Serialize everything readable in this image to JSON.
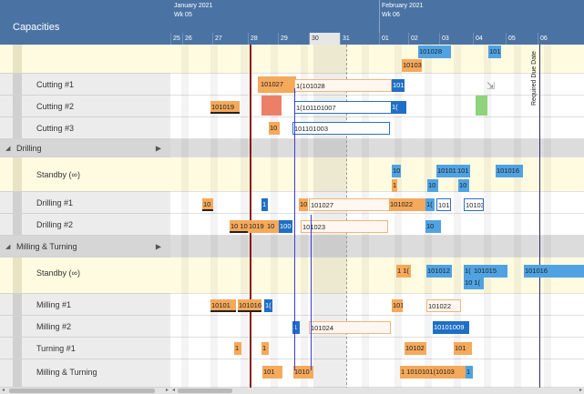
{
  "title": "Capacities",
  "header": {
    "months": [
      {
        "label": "January 2021",
        "week": "Wk 05"
      },
      {
        "label": "February 2021",
        "week": "Wk 06"
      }
    ],
    "days": [
      "25",
      "26",
      "27",
      "28",
      "29",
      "30",
      "31",
      "01",
      "02",
      "03",
      "04",
      "05",
      "06"
    ]
  },
  "rows": [
    {
      "name": "",
      "kind": "top"
    },
    {
      "name": "Cutting #1",
      "kind": "res"
    },
    {
      "name": "Cutting #2",
      "kind": "res"
    },
    {
      "name": "Cutting #3",
      "kind": "res"
    },
    {
      "name": "Drilling",
      "kind": "group"
    },
    {
      "name": "Standby (∞)",
      "kind": "standby"
    },
    {
      "name": "Drilling #1",
      "kind": "res"
    },
    {
      "name": "Drilling #2",
      "kind": "res"
    },
    {
      "name": "Milling & Turning",
      "kind": "group"
    },
    {
      "name": "Standby (∞)",
      "kind": "standby"
    },
    {
      "name": "Milling #1",
      "kind": "res"
    },
    {
      "name": "Milling #2",
      "kind": "res"
    },
    {
      "name": "Turning #1",
      "kind": "res"
    },
    {
      "name": "Milling & Turning",
      "kind": "res"
    }
  ],
  "required_due_date_label": "Required Due Date",
  "bars": [
    {
      "row": 0,
      "text": "101028",
      "color": "blue"
    },
    {
      "row": 0,
      "text": "101",
      "color": "blue"
    },
    {
      "row": 0,
      "text": "10103",
      "color": "orange"
    },
    {
      "row": 1,
      "text": "101027",
      "color": "orange"
    },
    {
      "row": 1,
      "text": "1(101028",
      "color": "outline"
    },
    {
      "row": 1,
      "text": "101",
      "color": "dblue"
    },
    {
      "row": 2,
      "text": "101019",
      "color": "orange"
    },
    {
      "row": 2,
      "text": "",
      "color": "red"
    },
    {
      "row": 2,
      "text": "1(101101007",
      "color": "bluebox"
    },
    {
      "row": 2,
      "text": "1(",
      "color": "dblue"
    },
    {
      "row": 2,
      "text": "",
      "color": "green"
    },
    {
      "row": 3,
      "text": "10",
      "color": "orange"
    },
    {
      "row": 3,
      "text": "101101003",
      "color": "bluebox"
    },
    {
      "row": 5,
      "text": "10",
      "color": "blue"
    },
    {
      "row": 5,
      "text": "10101",
      "color": "blue"
    },
    {
      "row": 5,
      "text": "101",
      "color": "blue"
    },
    {
      "row": 5,
      "text": "101016",
      "color": "blue"
    },
    {
      "row": 5,
      "text": "1",
      "color": "orange"
    },
    {
      "row": 5,
      "text": "10",
      "color": "blue"
    },
    {
      "row": 5,
      "text": "10",
      "color": "blue"
    },
    {
      "row": 6,
      "text": "10",
      "color": "orange"
    },
    {
      "row": 6,
      "text": "1",
      "color": "dblue"
    },
    {
      "row": 6,
      "text": "10",
      "color": "orange"
    },
    {
      "row": 6,
      "text": "101027",
      "color": "outline"
    },
    {
      "row": 6,
      "text": "101022",
      "color": "orange"
    },
    {
      "row": 6,
      "text": "1(",
      "color": "blue"
    },
    {
      "row": 6,
      "text": "101",
      "color": "bluebox"
    },
    {
      "row": 6,
      "text": "10103",
      "color": "bluebox"
    },
    {
      "row": 7,
      "text": "10 10",
      "color": "orange"
    },
    {
      "row": 7,
      "text": "1019",
      "color": "orange"
    },
    {
      "row": 7,
      "text": "10",
      "color": "orange"
    },
    {
      "row": 7,
      "text": "100",
      "color": "dblue"
    },
    {
      "row": 7,
      "text": "101023",
      "color": "outline"
    },
    {
      "row": 7,
      "text": "10",
      "color": "blue"
    },
    {
      "row": 9,
      "text": "1 1(",
      "color": "orange"
    },
    {
      "row": 9,
      "text": "101012",
      "color": "blue"
    },
    {
      "row": 9,
      "text": "1(",
      "color": "blue"
    },
    {
      "row": 9,
      "text": "101015",
      "color": "blue"
    },
    {
      "row": 9,
      "text": "10",
      "color": "blue"
    },
    {
      "row": 9,
      "text": "101016",
      "color": "blue"
    },
    {
      "row": 9,
      "text": "10 1(",
      "color": "blue"
    },
    {
      "row": 10,
      "text": "10101",
      "color": "orange"
    },
    {
      "row": 10,
      "text": "101016",
      "color": "orange"
    },
    {
      "row": 10,
      "text": "1(",
      "color": "dblue"
    },
    {
      "row": 10,
      "text": "101",
      "color": "orange"
    },
    {
      "row": 10,
      "text": "101022",
      "color": "outline"
    },
    {
      "row": 11,
      "text": "1",
      "color": "dblue"
    },
    {
      "row": 11,
      "text": "101024",
      "color": "outline"
    },
    {
      "row": 11,
      "text": "10101009",
      "color": "dblue"
    },
    {
      "row": 12,
      "text": "1",
      "color": "orange"
    },
    {
      "row": 12,
      "text": "1",
      "color": "orange"
    },
    {
      "row": 12,
      "text": "10102",
      "color": "orange"
    },
    {
      "row": 12,
      "text": "101",
      "color": "orange"
    },
    {
      "row": 13,
      "text": "101",
      "color": "orange"
    },
    {
      "row": 13,
      "text": "1010",
      "color": "orange"
    },
    {
      "row": 13,
      "text": "1 1010101(10103",
      "color": "orange"
    },
    {
      "row": 13,
      "text": "1",
      "color": "blue"
    }
  ]
}
